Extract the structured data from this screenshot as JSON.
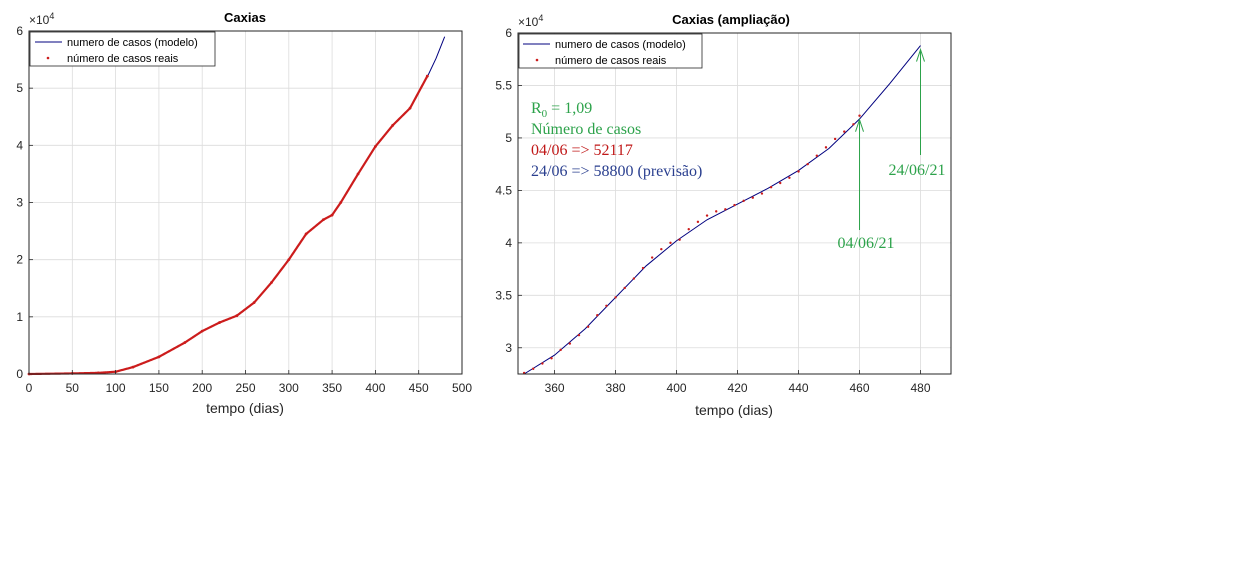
{
  "colors": {
    "model": "#00007f",
    "real": "#cc1c1c",
    "green": "#2ca24a",
    "blue": "#2a3f8f",
    "red": "#c01818"
  },
  "chart_data": [
    {
      "type": "line",
      "title": "Caxias",
      "xlabel": "tempo (dias)",
      "ylabel": "",
      "exponent_label": "×10",
      "exponent_power": "4",
      "xlim": [
        0,
        500
      ],
      "ylim": [
        0,
        60000
      ],
      "xticks": [
        0,
        50,
        100,
        150,
        200,
        250,
        300,
        350,
        400,
        450,
        500
      ],
      "yticks": [
        0,
        10000,
        20000,
        30000,
        40000,
        50000,
        60000
      ],
      "ytick_labels": [
        "0",
        "1",
        "2",
        "3",
        "4",
        "5",
        "6"
      ],
      "grid": true,
      "legend_position": "top-left",
      "series": [
        {
          "name": "numero de casos (modelo)",
          "style": "line",
          "x": [
            0,
            50,
            80,
            100,
            120,
            150,
            180,
            200,
            220,
            240,
            260,
            280,
            300,
            320,
            340,
            350,
            360,
            380,
            400,
            420,
            440,
            460,
            470,
            480
          ],
          "y": [
            0,
            100,
            200,
            400,
            1200,
            3000,
            5500,
            7500,
            9000,
            10200,
            12500,
            16000,
            20000,
            24500,
            27000,
            27800,
            30000,
            35000,
            39800,
            43500,
            46500,
            52000,
            55200,
            59000
          ]
        },
        {
          "name": "número de casos reais",
          "style": "points",
          "x": [
            0,
            50,
            80,
            100,
            120,
            150,
            180,
            200,
            220,
            240,
            260,
            280,
            300,
            320,
            340,
            350,
            360,
            380,
            400,
            420,
            440,
            460
          ],
          "y": [
            0,
            100,
            200,
            400,
            1200,
            3000,
            5500,
            7500,
            9000,
            10200,
            12500,
            16000,
            20000,
            24500,
            27000,
            27800,
            30000,
            35000,
            39800,
            43500,
            46500,
            52117
          ]
        }
      ]
    },
    {
      "type": "line",
      "title": "Caxias (ampliação)",
      "xlabel": "tempo (dias)",
      "ylabel": "",
      "exponent_label": "×10",
      "exponent_power": "4",
      "xlim": [
        348,
        490
      ],
      "ylim": [
        27500,
        60000
      ],
      "xticks": [
        360,
        380,
        400,
        420,
        440,
        460,
        480
      ],
      "yticks": [
        30000,
        35000,
        40000,
        45000,
        50000,
        55000,
        60000
      ],
      "ytick_labels": [
        "3",
        "3.5",
        "4",
        "4.5",
        "5",
        "5.5",
        "6"
      ],
      "grid": true,
      "legend_position": "top-left",
      "series": [
        {
          "name": "numero de casos (modelo)",
          "style": "line",
          "x": [
            350,
            360,
            370,
            380,
            390,
            400,
            410,
            420,
            430,
            440,
            450,
            460,
            470,
            480
          ],
          "y": [
            27500,
            29300,
            31800,
            34800,
            37800,
            40200,
            42200,
            43700,
            45200,
            46900,
            49000,
            51800,
            55200,
            58800
          ]
        },
        {
          "name": "número de casos reais",
          "style": "points",
          "x": [
            350,
            353,
            356,
            359,
            362,
            365,
            368,
            371,
            374,
            377,
            380,
            383,
            386,
            389,
            392,
            395,
            398,
            401,
            404,
            407,
            410,
            413,
            416,
            419,
            422,
            425,
            428,
            431,
            434,
            437,
            440,
            443,
            446,
            449,
            452,
            455,
            458,
            460
          ],
          "y": [
            27600,
            28000,
            28500,
            29000,
            29800,
            30400,
            31200,
            32000,
            33100,
            34000,
            34800,
            35700,
            36600,
            37600,
            38600,
            39400,
            40000,
            40300,
            41300,
            42000,
            42600,
            43000,
            43200,
            43600,
            44000,
            44300,
            44700,
            45300,
            45700,
            46200,
            46800,
            47500,
            48300,
            49100,
            49900,
            50600,
            51300,
            52117
          ]
        }
      ],
      "annotations": {
        "r0_prefix": "R",
        "r0_sub": "0",
        "r0_value": " = 1,09",
        "line2": "Número de casos",
        "line3": "04/06 => 52117",
        "line4": "24/06 => 58800  (previsão)",
        "arrow1_label": "04/06/21",
        "arrow1_x": 460,
        "arrow1_y": 52117,
        "arrow2_label": "24/06/21",
        "arrow2_x": 480,
        "arrow2_y": 58800
      }
    }
  ]
}
